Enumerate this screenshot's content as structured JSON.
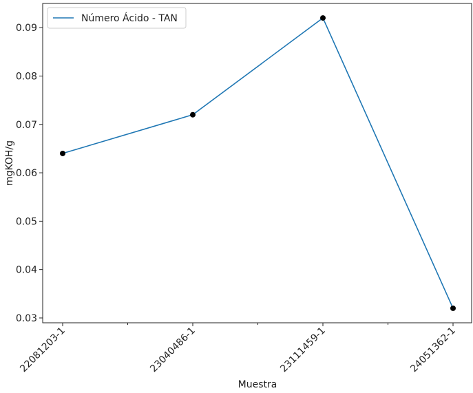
{
  "chart_data": {
    "type": "line",
    "title": "",
    "xlabel": "Muestra",
    "ylabel": "mgKOH/g",
    "categories": [
      "22081203-1",
      "23040486-1",
      "23111459-1",
      "24051362-1"
    ],
    "series": [
      {
        "name": "Número Ácido - TAN",
        "values": [
          0.064,
          0.072,
          0.092,
          0.032
        ],
        "color": "#1f77b4",
        "marker_color": "#000000"
      }
    ],
    "ylim": [
      0.029,
      0.095
    ],
    "yticks": [
      0.03,
      0.04,
      0.05,
      0.06,
      0.07,
      0.08,
      0.09
    ],
    "ytick_labels": [
      "0.03",
      "0.04",
      "0.05",
      "0.06",
      "0.07",
      "0.08",
      "0.09"
    ],
    "grid": false,
    "legend_position": "top-left"
  }
}
